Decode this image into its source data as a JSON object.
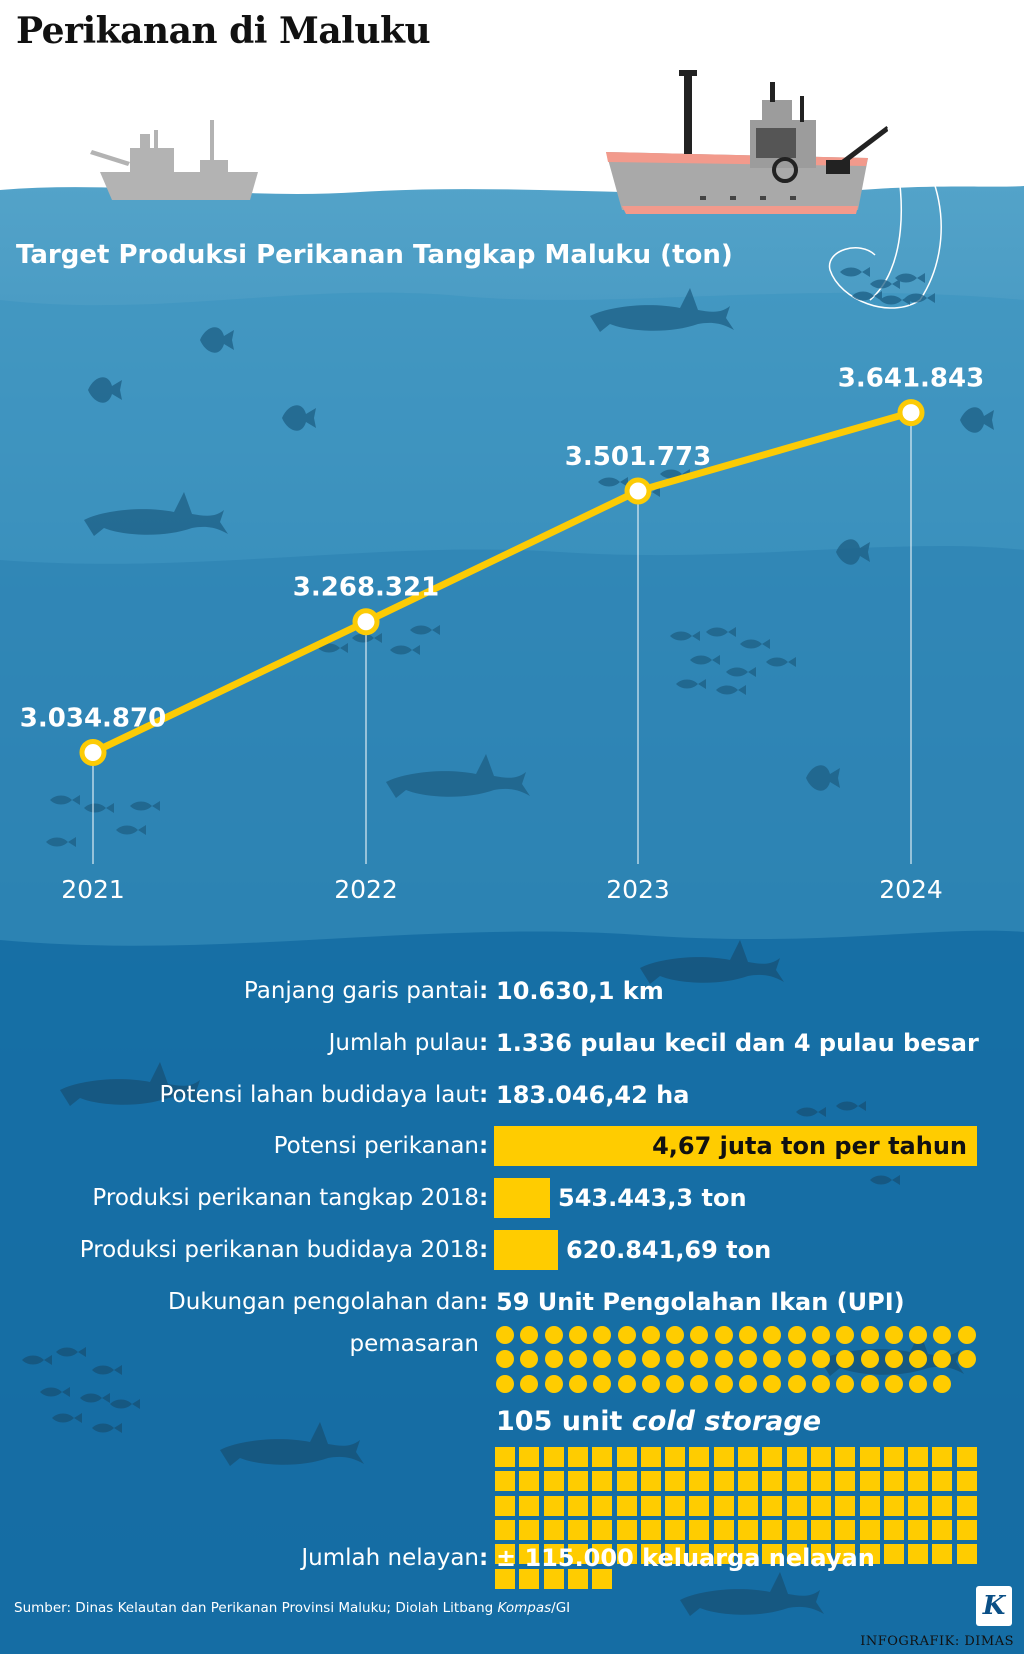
{
  "title": "Perikanan di Maluku",
  "chart_data": {
    "type": "line",
    "title": "Target Produksi Perikanan Tangkap Maluku (ton)",
    "categories": [
      "2021",
      "2022",
      "2023",
      "2024"
    ],
    "series": [
      {
        "values": [
          3034870,
          3268321,
          3501773,
          3641843
        ]
      }
    ],
    "data_labels": [
      "3.034.870",
      "3.268.321",
      "3.501.773",
      "3.641.843"
    ],
    "ylim": [
      2900000,
      3700000
    ],
    "grid": false,
    "line_color": "#fccb05"
  },
  "stats": {
    "coastline": {
      "label": "Panjang garis pantai",
      "value": "10.630,1 km"
    },
    "islands": {
      "label": "Jumlah pulau",
      "value": "1.336 pulau kecil dan 4 pulau besar"
    },
    "mariculture_area": {
      "label": "Potensi lahan budidaya laut",
      "value": "183.046,42 ha"
    },
    "fishery_potential": {
      "label": "Potensi perikanan",
      "value": "4,67 juta ton per tahun",
      "amount": 4670000
    },
    "capture_2018": {
      "label": "Produksi perikanan tangkap 2018",
      "value": "543.443,3 ton",
      "amount": 543443.3
    },
    "aquaculture_2018": {
      "label": "Produksi perikanan budidaya 2018",
      "value": "620.841,69 ton",
      "amount": 620841.69
    },
    "processing": {
      "label_line1": "Dukungan pengolahan dan",
      "label_line2": "pemasaran",
      "upi_value": "59 Unit Pengolahan Ikan (UPI)",
      "upi_count": 59,
      "cold_storage_number": "105 unit",
      "cold_storage_text": "cold storage",
      "cold_storage_count": 105
    },
    "fishermen": {
      "label": "Jumlah nelayan",
      "value": "± 115.000 keluarga nelayan"
    }
  },
  "source": {
    "prefix": "Sumber: Dinas Kelautan dan Perikanan Provinsi Maluku; Diolah Litbang ",
    "italic": "Kompas",
    "suffix": "/GI"
  },
  "credit": "INFOGRAFIK: DIMAS",
  "logo_letter": "K",
  "colors": {
    "accent": "#fccb05",
    "sea_top": "#4a9cc4",
    "sea_deep": "#0a5f93",
    "silhouette": "#1b5a7e"
  }
}
